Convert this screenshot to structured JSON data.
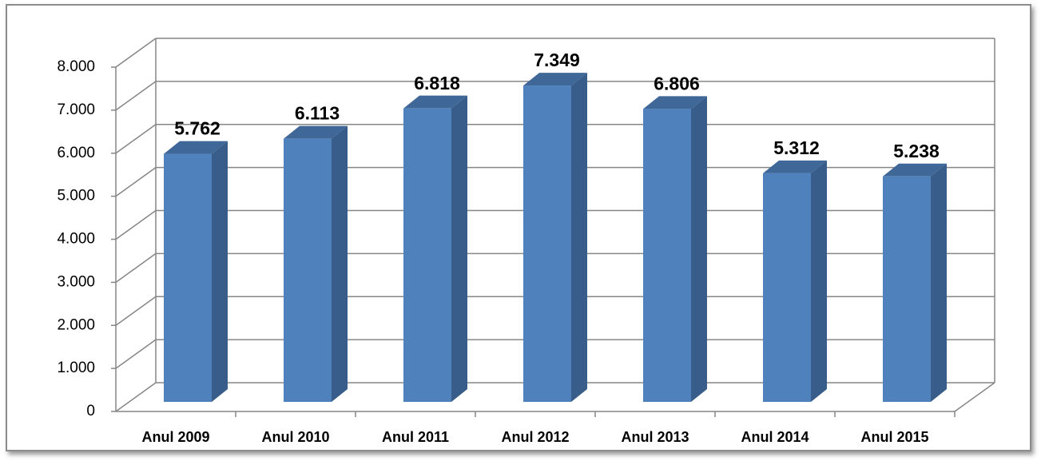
{
  "chart_data": {
    "type": "bar3d",
    "categories": [
      "Anul 2009",
      "Anul 2010",
      "Anul 2011",
      "Anul 2012",
      "Anul 2013",
      "Anul 2014",
      "Anul 2015"
    ],
    "values": [
      5762,
      6113,
      6818,
      7349,
      6806,
      5312,
      5238
    ],
    "value_labels": [
      "5.762",
      "6.113",
      "6.818",
      "7.349",
      "6.806",
      "5.312",
      "5.238"
    ],
    "color": "#4f81bd",
    "ylim": [
      0,
      8000
    ],
    "yticks": [
      0,
      {
        "value": 1000,
        "label": "1.000"
      },
      {
        "value": 2000,
        "label": "2.000"
      },
      {
        "value": 3000,
        "label": "3.000"
      },
      {
        "value": 4000,
        "label": "4.000"
      },
      {
        "value": 5000,
        "label": "5.000"
      },
      {
        "value": 6000,
        "label": "6.000"
      },
      {
        "value": 7000,
        "label": "7.000"
      },
      {
        "value": 8000,
        "label": "8.000"
      }
    ],
    "grid": true
  }
}
